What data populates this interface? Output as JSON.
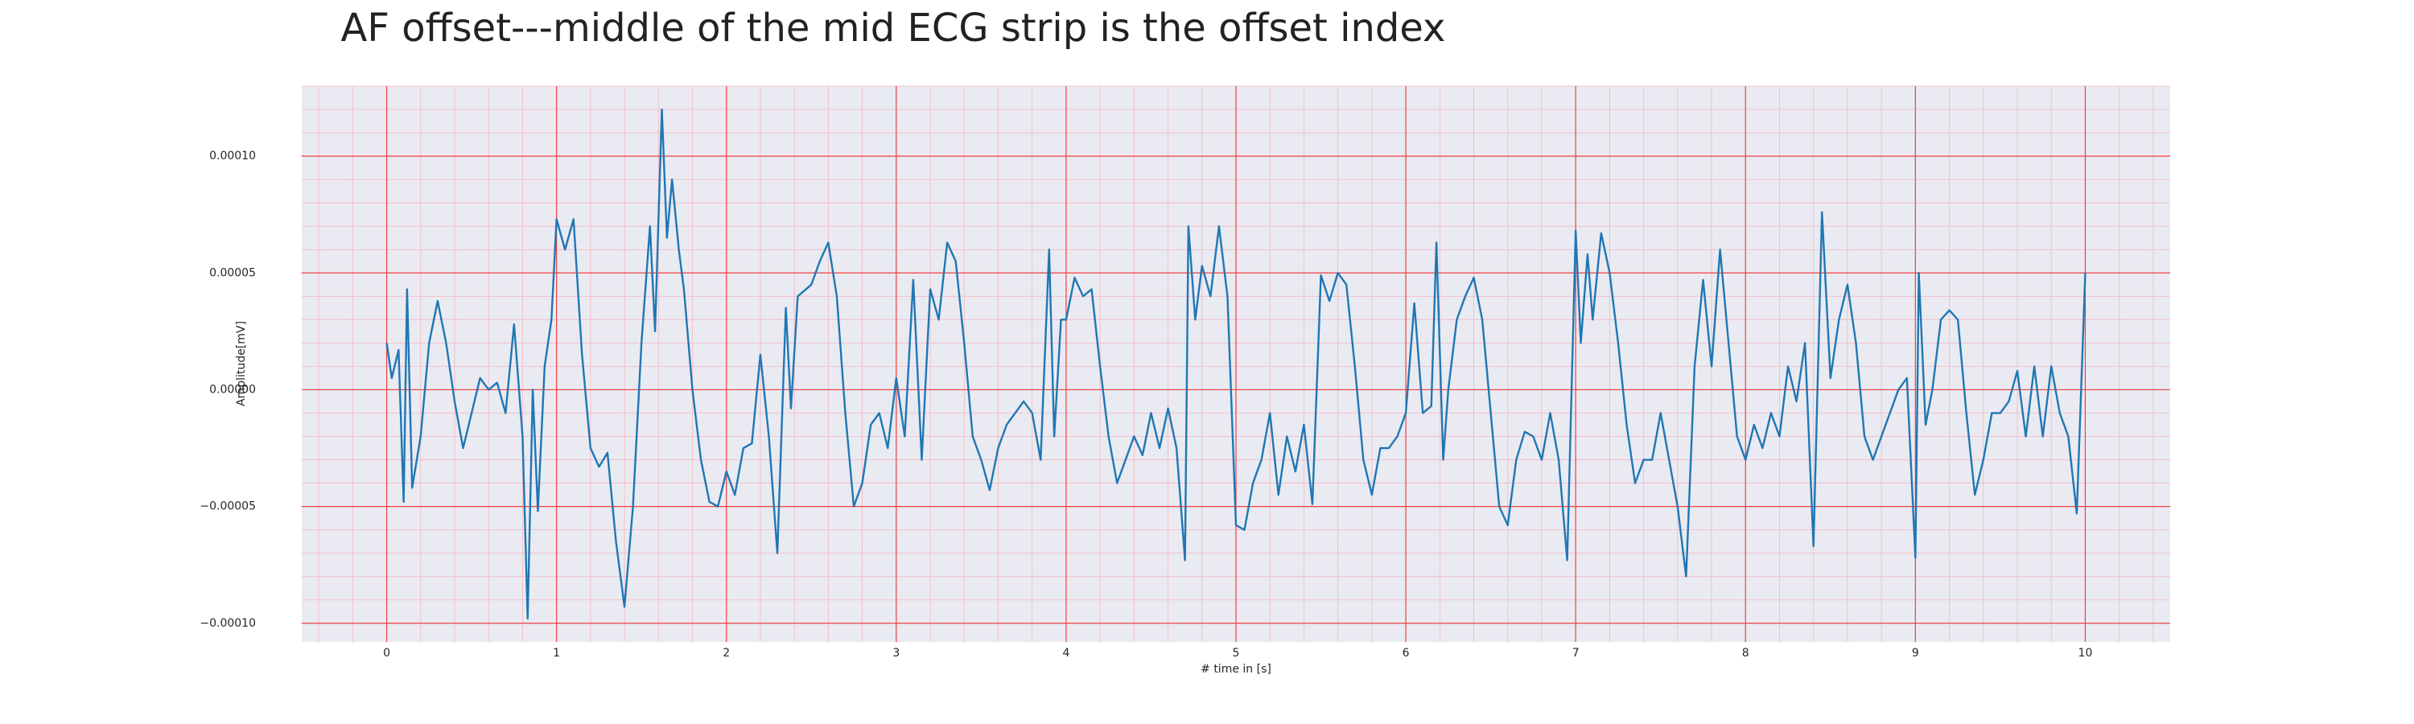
{
  "chart_data": {
    "type": "line",
    "title": "AF offset---middle of the mid ECG strip is the offset index",
    "xlabel": "# time in [s]",
    "ylabel": "Amplitude[mV]",
    "grid": true,
    "xlim": [
      -0.5,
      10.5
    ],
    "ylim": [
      -0.000108,
      0.00013
    ],
    "xticks": [
      0,
      1,
      2,
      3,
      4,
      5,
      6,
      7,
      8,
      9,
      10
    ],
    "yticks": [
      {
        "value": -0.0001,
        "label": "−0.00010"
      },
      {
        "value": -5e-05,
        "label": "−0.00005"
      },
      {
        "value": 0,
        "label": "0.00000"
      },
      {
        "value": 5e-05,
        "label": "0.00005"
      },
      {
        "value": 0.0001,
        "label": "0.00010"
      }
    ],
    "x": [
      0,
      0.03,
      0.07,
      0.1,
      0.12,
      0.15,
      0.2,
      0.25,
      0.3,
      0.35,
      0.4,
      0.45,
      0.5,
      0.55,
      0.6,
      0.65,
      0.7,
      0.75,
      0.8,
      0.83,
      0.86,
      0.89,
      0.93,
      0.97,
      1.0,
      1.05,
      1.1,
      1.15,
      1.2,
      1.25,
      1.3,
      1.35,
      1.4,
      1.45,
      1.5,
      1.55,
      1.58,
      1.62,
      1.65,
      1.68,
      1.72,
      1.75,
      1.8,
      1.85,
      1.9,
      1.95,
      2.0,
      2.05,
      2.1,
      2.15,
      2.2,
      2.25,
      2.3,
      2.35,
      2.38,
      2.42,
      2.5,
      2.55,
      2.6,
      2.65,
      2.7,
      2.75,
      2.8,
      2.85,
      2.9,
      2.95,
      3.0,
      3.05,
      3.1,
      3.15,
      3.2,
      3.25,
      3.3,
      3.35,
      3.4,
      3.45,
      3.5,
      3.55,
      3.6,
      3.65,
      3.7,
      3.75,
      3.8,
      3.85,
      3.9,
      3.93,
      3.97,
      4.0,
      4.05,
      4.1,
      4.15,
      4.2,
      4.25,
      4.3,
      4.35,
      4.4,
      4.45,
      4.5,
      4.55,
      4.6,
      4.65,
      4.7,
      4.72,
      4.76,
      4.8,
      4.85,
      4.9,
      4.95,
      5.0,
      5.05,
      5.1,
      5.15,
      5.2,
      5.25,
      5.3,
      5.35,
      5.4,
      5.45,
      5.5,
      5.55,
      5.6,
      5.65,
      5.7,
      5.75,
      5.8,
      5.85,
      5.9,
      5.95,
      6.0,
      6.05,
      6.1,
      6.15,
      6.18,
      6.22,
      6.25,
      6.3,
      6.35,
      6.4,
      6.45,
      6.5,
      6.55,
      6.6,
      6.65,
      6.7,
      6.75,
      6.8,
      6.85,
      6.9,
      6.95,
      7.0,
      7.03,
      7.07,
      7.1,
      7.15,
      7.2,
      7.25,
      7.3,
      7.35,
      7.4,
      7.45,
      7.5,
      7.55,
      7.6,
      7.65,
      7.7,
      7.75,
      7.8,
      7.85,
      7.9,
      7.95,
      8.0,
      8.05,
      8.1,
      8.15,
      8.2,
      8.25,
      8.3,
      8.35,
      8.4,
      8.45,
      8.5,
      8.55,
      8.6,
      8.65,
      8.7,
      8.75,
      8.8,
      8.85,
      8.9,
      8.95,
      9.0,
      9.02,
      9.06,
      9.1,
      9.15,
      9.2,
      9.25,
      9.3,
      9.35,
      9.4,
      9.45,
      9.5,
      9.55,
      9.6,
      9.65,
      9.7,
      9.75,
      9.8,
      9.85,
      9.9,
      9.95,
      10.0
    ],
    "series": [
      {
        "color": "#1f77b4",
        "values": [
          2e-05,
          5e-06,
          1.7e-05,
          -4.8e-05,
          4.3e-05,
          -4.2e-05,
          -2e-05,
          2e-05,
          3.8e-05,
          2e-05,
          -5e-06,
          -2.5e-05,
          -1e-05,
          5e-06,
          0,
          3e-06,
          -1e-05,
          2.8e-05,
          -2e-05,
          -9.8e-05,
          0,
          -5.2e-05,
          1e-05,
          3e-05,
          7.3e-05,
          6e-05,
          7.3e-05,
          1.5e-05,
          -2.5e-05,
          -3.3e-05,
          -2.7e-05,
          -6.5e-05,
          -9.3e-05,
          -5e-05,
          2e-05,
          7e-05,
          2.5e-05,
          0.00012,
          6.5e-05,
          9e-05,
          6e-05,
          4.3e-05,
          0,
          -3e-05,
          -4.8e-05,
          -5e-05,
          -3.5e-05,
          -4.5e-05,
          -2.5e-05,
          -2.3e-05,
          1.5e-05,
          -2e-05,
          -7e-05,
          3.5e-05,
          -8e-06,
          4e-05,
          4.5e-05,
          5.5e-05,
          6.3e-05,
          4e-05,
          -1e-05,
          -5e-05,
          -4e-05,
          -1.5e-05,
          -1e-05,
          -2.5e-05,
          5e-06,
          -2e-05,
          4.7e-05,
          -3e-05,
          4.3e-05,
          3e-05,
          6.3e-05,
          5.5e-05,
          2e-05,
          -2e-05,
          -3e-05,
          -4.3e-05,
          -2.5e-05,
          -1.5e-05,
          -1e-05,
          -5e-06,
          -1e-05,
          -3e-05,
          6e-05,
          -2e-05,
          3e-05,
          3e-05,
          4.8e-05,
          4e-05,
          4.3e-05,
          1e-05,
          -2e-05,
          -4e-05,
          -3e-05,
          -2e-05,
          -2.8e-05,
          -1e-05,
          -2.5e-05,
          -8e-06,
          -2.5e-05,
          -7.3e-05,
          7e-05,
          3e-05,
          5.3e-05,
          4e-05,
          7e-05,
          4e-05,
          -5.8e-05,
          -6e-05,
          -4e-05,
          -3e-05,
          -1e-05,
          -4.5e-05,
          -2e-05,
          -3.5e-05,
          -1.5e-05,
          -4.9e-05,
          4.9e-05,
          3.8e-05,
          5e-05,
          4.5e-05,
          1e-05,
          -3e-05,
          -4.5e-05,
          -2.5e-05,
          -2.5e-05,
          -2e-05,
          -1e-05,
          3.7e-05,
          -1e-05,
          -7e-06,
          6.3e-05,
          -3e-05,
          0,
          3e-05,
          4e-05,
          4.8e-05,
          3e-05,
          -1e-05,
          -5e-05,
          -5.8e-05,
          -3e-05,
          -1.8e-05,
          -2e-05,
          -3e-05,
          -1e-05,
          -3e-05,
          -7.3e-05,
          6.8e-05,
          2e-05,
          5.8e-05,
          3e-05,
          6.7e-05,
          5e-05,
          2e-05,
          -1.5e-05,
          -4e-05,
          -3e-05,
          -3e-05,
          -1e-05,
          -3e-05,
          -5e-05,
          -8e-05,
          1e-05,
          4.7e-05,
          1e-05,
          6e-05,
          2e-05,
          -2e-05,
          -3e-05,
          -1.5e-05,
          -2.5e-05,
          -1e-05,
          -2e-05,
          1e-05,
          -5e-06,
          2e-05,
          -6.7e-05,
          7.6e-05,
          5e-06,
          3e-05,
          4.5e-05,
          2e-05,
          -2e-05,
          -3e-05,
          -2e-05,
          -1e-05,
          0,
          5e-06,
          -7.2e-05,
          5e-05,
          -1.5e-05,
          0,
          3e-05,
          3.4e-05,
          3e-05,
          -1e-05,
          -4.5e-05,
          -3e-05,
          -1e-05,
          -1e-05,
          -5e-06,
          8e-06,
          -2e-05,
          1e-05,
          -2e-05,
          1e-05,
          -1e-05,
          -2e-05,
          -5.3e-05,
          5e-05
        ]
      }
    ]
  }
}
